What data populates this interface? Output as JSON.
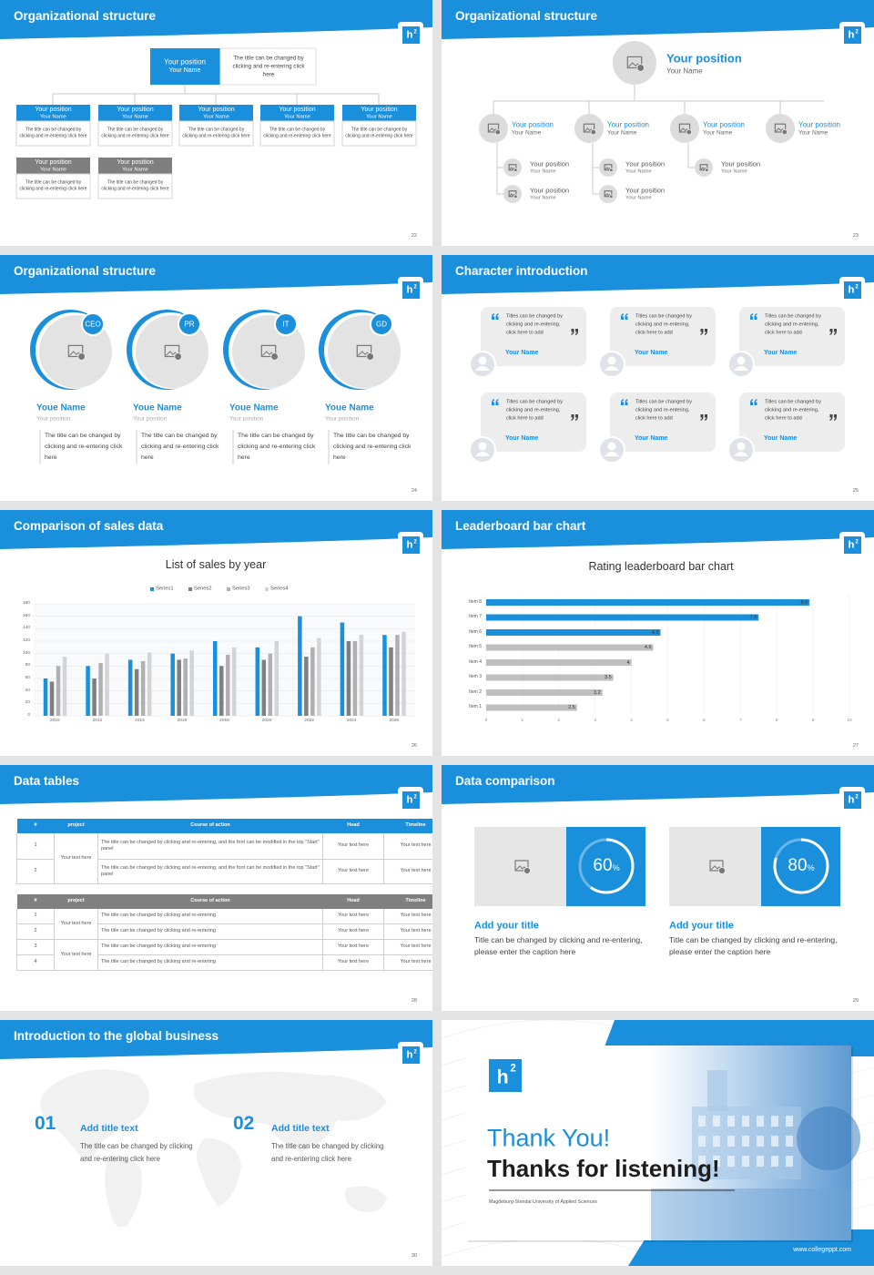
{
  "logo": {
    "main": "h",
    "sup": "2"
  },
  "chart_data": [
    {
      "type": "bar",
      "title": "List of sales by year",
      "categories": [
        "2010",
        "2012",
        "2014",
        "2016",
        "2018",
        "2020",
        "2022",
        "2024",
        "2026"
      ],
      "series": [
        {
          "name": "Series1",
          "color": "#1a8fdc",
          "values": [
            60,
            80,
            90,
            100,
            120,
            110,
            160,
            150,
            130
          ]
        },
        {
          "name": "Series2",
          "color": "#7f7f7f",
          "values": [
            55,
            60,
            75,
            90,
            80,
            90,
            95,
            120,
            110
          ]
        },
        {
          "name": "Series3",
          "color": "#b0b0b0",
          "values": [
            80,
            85,
            88,
            92,
            98,
            100,
            110,
            120,
            130
          ]
        },
        {
          "name": "Series4",
          "color": "#d4d4d4",
          "values": [
            95,
            100,
            102,
            105,
            110,
            120,
            125,
            130,
            135
          ]
        }
      ],
      "ylim": [
        0,
        180
      ],
      "yticks": [
        0,
        20,
        40,
        60,
        80,
        100,
        120,
        140,
        160,
        180
      ],
      "grid": true
    },
    {
      "type": "barh",
      "title": "Rating leaderboard bar chart",
      "categories": [
        "Item 1",
        "Item 2",
        "Item 3",
        "Item 4",
        "Item 5",
        "Item 6",
        "Item 7",
        "Item 8"
      ],
      "values": [
        2.5,
        3.2,
        3.5,
        4,
        4.6,
        4.8,
        7.5,
        8.9
      ],
      "colors": [
        "#bfbfbf",
        "#bfbfbf",
        "#bfbfbf",
        "#bfbfbf",
        "#bfbfbf",
        "#1a8fdc",
        "#1a8fdc",
        "#1a8fdc"
      ],
      "xlim": [
        0,
        10
      ],
      "xticks": [
        0,
        1,
        2,
        3,
        4,
        5,
        6,
        7,
        8,
        9,
        10
      ],
      "grid": true
    }
  ],
  "slides": [
    {
      "title": "Organizational structure",
      "page": "22",
      "head": {
        "position": "Your position",
        "name": "Your Name",
        "note": "The title can be changed by clicking and re-entering click here"
      },
      "members": [
        {
          "position": "Your position",
          "name": "Your Name",
          "note": "The title can be changed by clicking and re-entering click here"
        },
        {
          "position": "Your position",
          "name": "Your Name",
          "note": "The title can be changed by clicking and re-entering click here"
        },
        {
          "position": "Your position",
          "name": "Your Name",
          "note": "The title can be changed by clicking and re-entering click here"
        },
        {
          "position": "Your position",
          "name": "Your Name",
          "note": "The title can be changed by clicking and re-entering click here"
        },
        {
          "position": "Your position",
          "name": "Your Name",
          "note": "The title can be changed by clicking and re-entering click here"
        },
        {
          "position": "Your position",
          "name": "Your Name",
          "note": "The title can be changed by clicking and re-entering click here"
        },
        {
          "position": "Your position",
          "name": "Your Name",
          "note": "The title can be changed by clicking and re-entering click here"
        }
      ]
    },
    {
      "title": "Organizational structure",
      "page": "23",
      "head": {
        "position": "Your position",
        "name": "Your Name"
      },
      "members": [
        {
          "position": "Your position",
          "name": "Your Name"
        },
        {
          "position": "Your position",
          "name": "Your Name"
        },
        {
          "position": "Your position",
          "name": "Your Name"
        },
        {
          "position": "Your position",
          "name": "Your Name"
        }
      ],
      "subs": [
        {
          "position": "Your position",
          "name": "Your Name"
        },
        {
          "position": "Your position",
          "name": "Your Name"
        },
        {
          "position": "Your position",
          "name": "Your Name"
        },
        {
          "position": "Your position",
          "name": "Your Name"
        },
        {
          "position": "Your position",
          "name": "Your Name"
        }
      ]
    },
    {
      "title": "Organizational structure",
      "page": "24",
      "cards": [
        {
          "badge": "CEO",
          "name": "Youe Name",
          "position": "Your position",
          "note": "The title can be changed by clicking and re-entering click here"
        },
        {
          "badge": "PR",
          "name": "Youe Name",
          "position": "Your position",
          "note": "The title can be changed by clicking and re-entering click here"
        },
        {
          "badge": "IT",
          "name": "Youe Name",
          "position": "Your position",
          "note": "The title can be changed by clicking and re-entering click here"
        },
        {
          "badge": "GD",
          "name": "Youe Name",
          "position": "Your position",
          "note": "The title can be changed by clicking and re-entering click here"
        }
      ]
    },
    {
      "title": "Character introduction",
      "page": "25",
      "cards": [
        {
          "text": "Titles can be changed by clicking and re-entering, click here to add",
          "name": "Your Name"
        },
        {
          "text": "Titles can be changed by clicking and re-entering, click here to add",
          "name": "Your Name"
        },
        {
          "text": "Titles can be changed by clicking and re-entering, click here to add",
          "name": "Your Name"
        },
        {
          "text": "Titles can be changed by clicking and re-entering, click here to add",
          "name": "Your Name"
        },
        {
          "text": "Titles can be changed by clicking and re-entering, click here to add",
          "name": "Your Name"
        },
        {
          "text": "Titles can be changed by clicking and re-entering, click here to add",
          "name": "Your Name"
        }
      ]
    },
    {
      "title": "Comparison of sales data",
      "page": "26"
    },
    {
      "title": "Leaderboard bar chart",
      "page": "27"
    },
    {
      "title": "Data tables",
      "page": "28",
      "tables": [
        {
          "header": [
            "#",
            "project",
            "Course of action",
            "Head",
            "Timeline"
          ],
          "groups": [
            {
              "project": "Your text here",
              "rows": [
                [
                  "1",
                  "The title can be changed by clicking and re-entering, and the font can be modified in the top \"Start\" panel",
                  "Your text here",
                  "Your text here"
                ],
                [
                  "2",
                  "The title can be changed by clicking and re-entering, and the font can be modified in the top \"Start\" panel",
                  "Your text here",
                  "Your text here"
                ]
              ]
            }
          ]
        },
        {
          "header": [
            "#",
            "project",
            "Course of action",
            "Head",
            "Timeline"
          ],
          "groups": [
            {
              "project": "Your text here",
              "rows": [
                [
                  "1",
                  "The title can be changed by clicking and re-entering",
                  "Your text here",
                  "Your text here"
                ],
                [
                  "2",
                  "The title can be changed by clicking and re-entering",
                  "Your text here",
                  "Your text here"
                ]
              ]
            },
            {
              "project": "Your text here",
              "rows": [
                [
                  "3",
                  "The title can be changed by clicking and re-entering",
                  "Your text here",
                  "Your text here"
                ],
                [
                  "4",
                  "The title can be changed by clicking and re-entering",
                  "Your text here",
                  "Your text here"
                ]
              ]
            }
          ]
        }
      ]
    },
    {
      "title": "Data comparison",
      "page": "29",
      "items": [
        {
          "percent": 60,
          "unit": "%",
          "heading": "Add your title",
          "text": "Title can be changed by clicking and re-entering, please enter the caption here"
        },
        {
          "percent": 80,
          "unit": "%",
          "heading": "Add your title",
          "text": "Title can be changed by clicking and re-entering, please enter the caption here"
        }
      ]
    },
    {
      "title": "Introduction to the global business",
      "page": "30",
      "items": [
        {
          "num": "01",
          "heading": "Add title text",
          "text": "The title can be changed by clicking and re-entering click here"
        },
        {
          "num": "02",
          "heading": "Add title text",
          "text": "The title can be changed by clicking and re-entering click here"
        }
      ]
    },
    {
      "thanks": "Thank You!",
      "message": "Thanks for listening!",
      "university": "Magdeburg-Stendal University of Applied Sciences",
      "website": "www.collegeppt.com"
    }
  ]
}
